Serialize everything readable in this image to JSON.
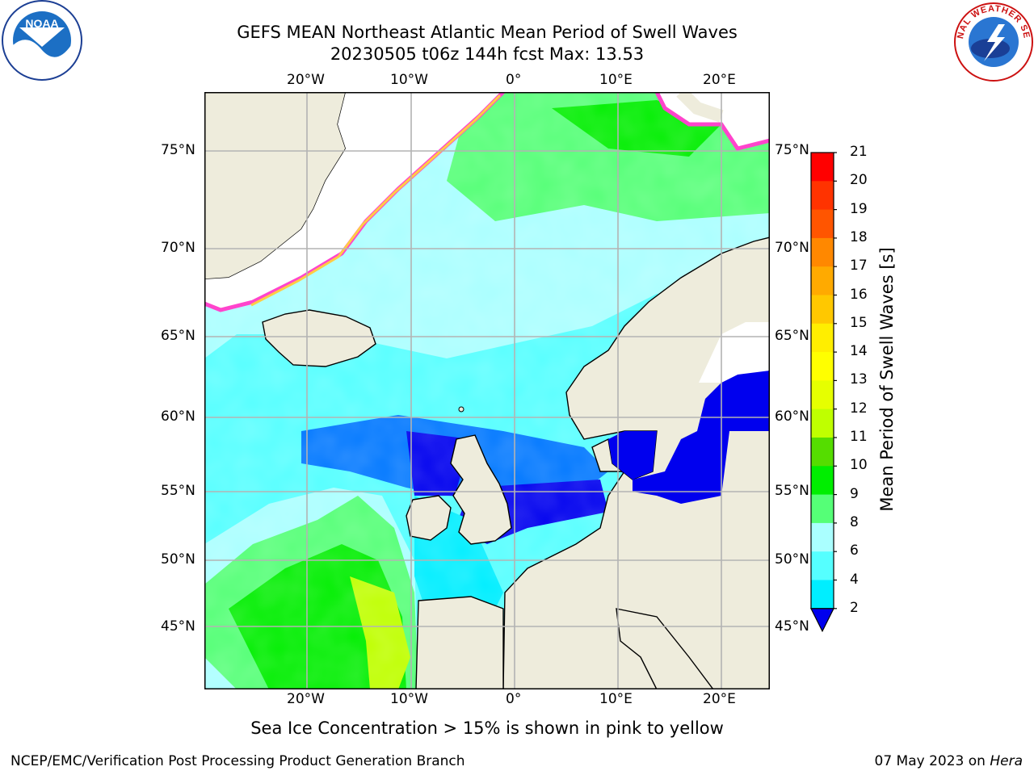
{
  "title": {
    "line1": "GEFS MEAN Northeast Atlantic Mean Period of Swell Waves",
    "line2": "20230505 t06z 144h fcst   Max: 13.53"
  },
  "map": {
    "lon_labels": [
      "20°W",
      "10°W",
      "0°",
      "10°E",
      "20°E"
    ],
    "lat_labels": [
      "75°N",
      "70°N",
      "65°N",
      "60°N",
      "55°N",
      "50°N",
      "45°N"
    ]
  },
  "colorbar": {
    "title": "Mean Period of Swell Waves [s]",
    "ticks": [
      "21",
      "20",
      "19",
      "18",
      "17",
      "16",
      "15",
      "14",
      "13",
      "12",
      "11",
      "10",
      "9",
      "8",
      "6",
      "4",
      "2"
    ],
    "colors": [
      "#ff0000",
      "#ff3300",
      "#ff5500",
      "#ff8800",
      "#ffaa00",
      "#ffc800",
      "#ffee00",
      "#ffff00",
      "#e6ff00",
      "#bfff00",
      "#55dd00",
      "#00ee00",
      "#55ff77",
      "#aaffff",
      "#55ffff",
      "#00eeff",
      "#0077ff",
      "#0000ee"
    ],
    "extend_color": "#0000ee"
  },
  "caption": "Sea Ice Concentration > 15% is shown in pink to yellow",
  "footer": {
    "left": "NCEP/EMC/Verification Post Processing Product Generation Branch",
    "date": "07 May 2023 on ",
    "host": "Hera"
  },
  "logos": {
    "noaa_text": "NOAA",
    "nws_text": "NATIONAL WEATHER SERVICE"
  }
}
